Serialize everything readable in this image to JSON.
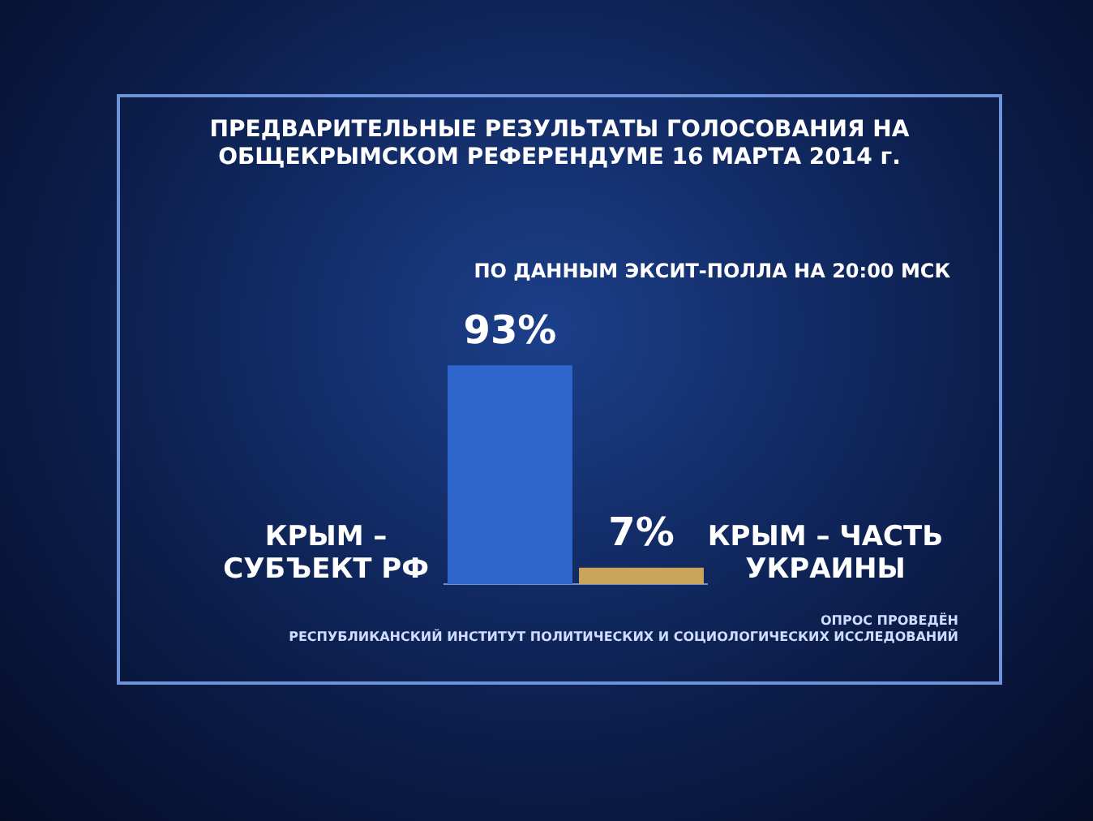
{
  "chart_data": {
    "type": "bar",
    "title": "ПРЕДВАРИТЕЛЬНЫЕ РЕЗУЛЬТАТЫ ГОЛОСОВАНИЯ НА ОБЩЕКРЫМСКОМ РЕФЕРЕНДУМЕ 16 МАРТА 2014 г.",
    "subtitle": "ПО ДАННЫМ ЭКСИТ-ПОЛЛА НА 20:00 МСК",
    "categories": [
      "КРЫМ – СУБЪЕКТ РФ",
      "КРЫМ – ЧАСТЬ УКРАИНЫ"
    ],
    "values": [
      93,
      7
    ],
    "colors": [
      "#2f66cc",
      "#c9a45a"
    ],
    "value_labels": [
      "93%",
      "7%"
    ],
    "annotations": [
      "ОПРОС ПРОВЕДЁН",
      "РЕСПУБЛИКАНСКИЙ ИНСТИТУТ ПОЛИТИЧЕСКИХ И СОЦИОЛОГИЧЕСКИХ ИССЛЕДОВАНИЙ"
    ]
  }
}
